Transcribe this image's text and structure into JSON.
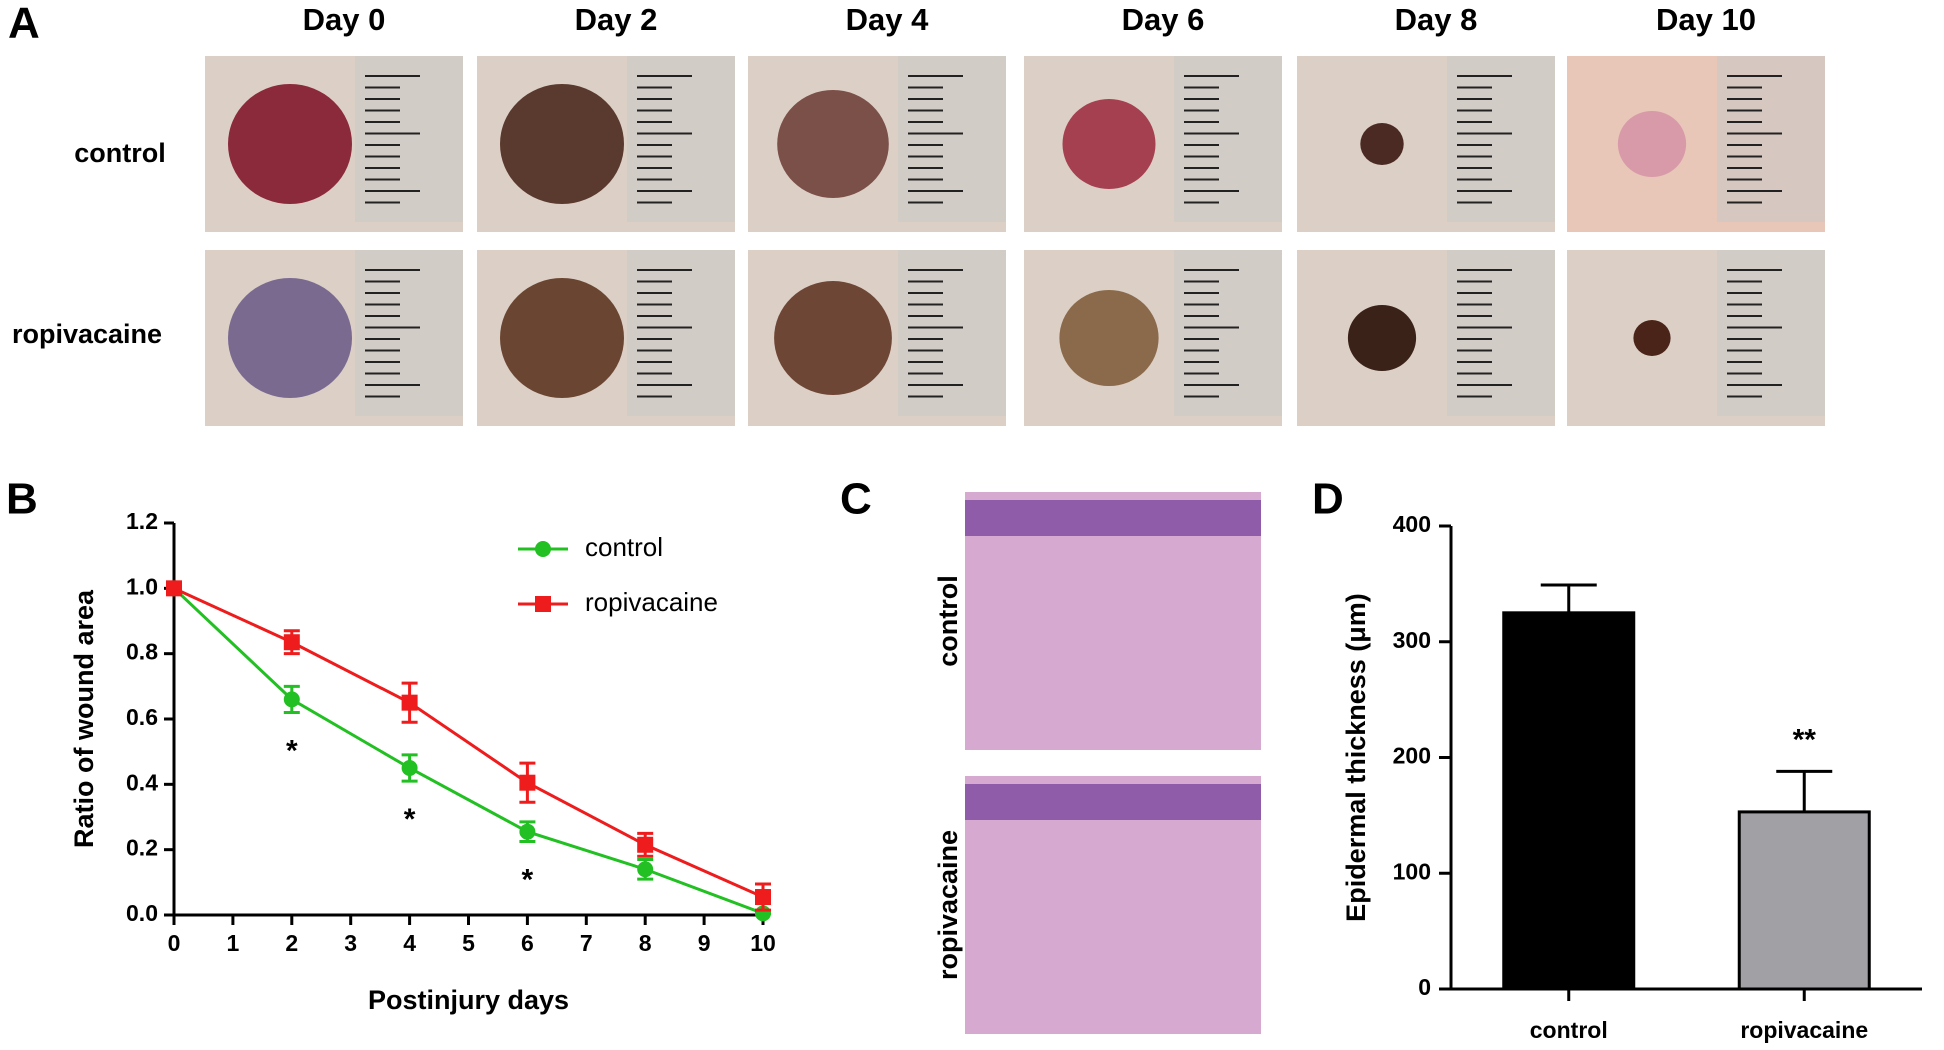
{
  "figure": {
    "panel_a": {
      "label": "A",
      "columns": [
        "Day 0",
        "Day 2",
        "Day 4",
        "Day 6",
        "Day 8",
        "Day 10"
      ],
      "rows": [
        "control",
        "ropivacaine"
      ]
    },
    "panel_b": {
      "label": "B"
    },
    "panel_c": {
      "label": "C",
      "rows": [
        "control",
        "ropivacaine"
      ]
    },
    "panel_d": {
      "label": "D"
    }
  },
  "chart_data": [
    {
      "type": "line",
      "x_label": "Postinjury days",
      "y_label": "Ratio of wound area",
      "xlim": [
        0,
        10
      ],
      "xticks": [
        0,
        1,
        2,
        3,
        4,
        5,
        6,
        7,
        8,
        9,
        10
      ],
      "ylim": [
        0,
        1.2
      ],
      "yticks": [
        {
          "value": 0,
          "label": "0.0"
        },
        0.2,
        0.4,
        0.6,
        0.8,
        {
          "value": 1,
          "label": "1.0"
        },
        1.2
      ],
      "legend": "upper right",
      "series": [
        {
          "name": "control",
          "color": "#22c022",
          "marker": "circle",
          "x": [
            0,
            2,
            4,
            6,
            8,
            10
          ],
          "values": [
            1,
            0.66,
            0.45,
            0.255,
            0.14,
            0.005
          ],
          "errors": [
            0,
            0.04,
            0.04,
            0.03,
            0.03,
            0
          ]
        },
        {
          "name": "ropivacaine",
          "color": "#ee1c1c",
          "marker": "square",
          "x": [
            0,
            2,
            4,
            6,
            8,
            10
          ],
          "values": [
            1,
            0.835,
            0.65,
            0.405,
            0.215,
            0.055
          ],
          "errors": [
            0,
            0.035,
            0.06,
            0.06,
            0.035,
            0.04
          ]
        }
      ],
      "annotations": [
        {
          "text": "*",
          "x": 2
        },
        {
          "text": "*",
          "x": 4
        },
        {
          "text": "*",
          "x": 6
        }
      ]
    },
    {
      "type": "bar",
      "y_label": "Epidermal thickness (μm)",
      "categories": [
        "control",
        "ropivacaine"
      ],
      "values": [
        325,
        153
      ],
      "errors": [
        24,
        35
      ],
      "colors": [
        "#000000",
        "#a0a0a5"
      ],
      "ylim": [
        0,
        400
      ],
      "yticks": [
        0,
        100,
        200,
        300,
        400
      ],
      "annotations": [
        {
          "text": "**",
          "category": 1
        }
      ]
    }
  ]
}
